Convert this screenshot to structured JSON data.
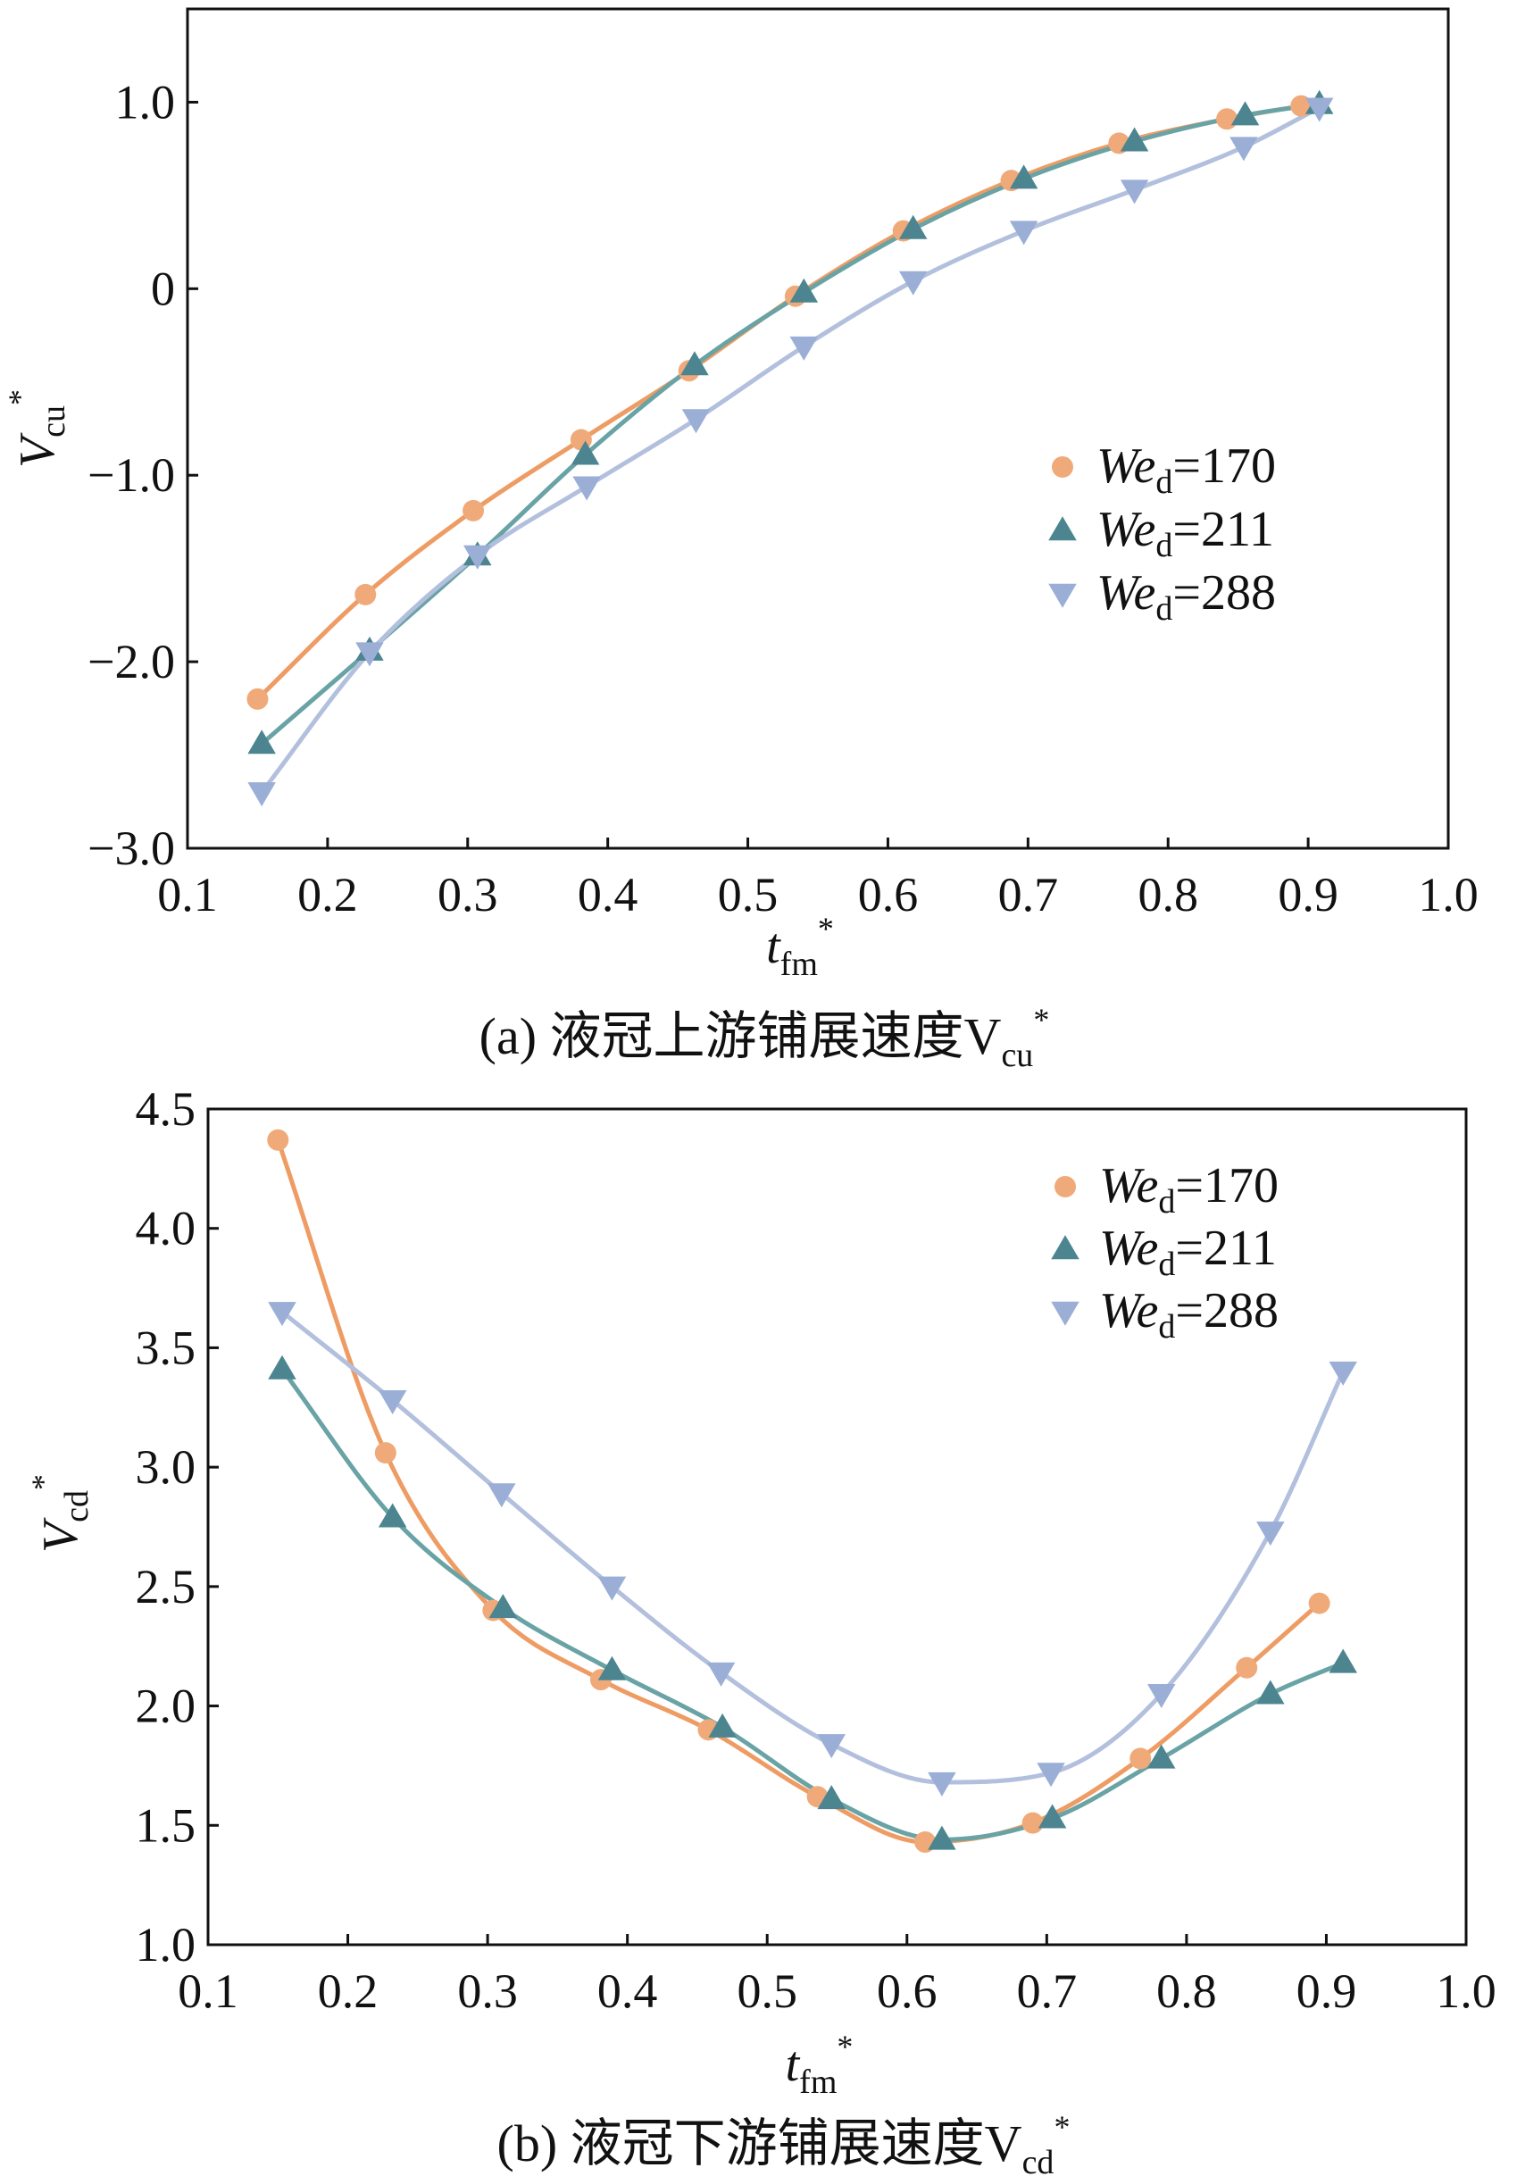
{
  "series_colors": {
    "We170": "#f0aa7a",
    "We211": "#4c8590",
    "We288": "#9aaed6"
  },
  "line_colors": {
    "We170": "#ee9c64",
    "We211": "#6aa3a5",
    "We288": "#b3c0dd"
  },
  "chart_data": [
    {
      "type": "line",
      "panel": "a",
      "caption": "(a)  液冠上游铺展速度V",
      "caption_sub": "cu",
      "caption_sup": "*",
      "xlabel": "t",
      "xlabel_sub": "fm",
      "xlabel_sup": "*",
      "ylabel": "V",
      "ylabel_sub": "cu",
      "ylabel_sup": "*",
      "xlim": [
        0.1,
        1.0
      ],
      "ylim": [
        -3.0,
        1.5
      ],
      "xticks": [
        0.1,
        0.2,
        0.3,
        0.4,
        0.5,
        0.6,
        0.7,
        0.8,
        0.9,
        1.0
      ],
      "xtick_labels": [
        "0.1",
        "0.2",
        "0.3",
        "0.4",
        "0.5",
        "0.6",
        "0.7",
        "0.8",
        "0.9",
        "1.0"
      ],
      "yticks": [
        -3.0,
        -2.0,
        -1.0,
        0,
        1.0
      ],
      "ytick_labels": [
        "−3.0",
        "−2.0",
        "−1.0",
        "0",
        "1.0"
      ],
      "legend_position": "center-right",
      "series": [
        {
          "name_main": "We",
          "name_sub": "d",
          "name_rest": "=170",
          "marker": "circle",
          "key": "We170",
          "x": [
            0.15,
            0.227,
            0.304,
            0.381,
            0.458,
            0.534,
            0.611,
            0.688,
            0.765,
            0.842,
            0.895
          ],
          "y": [
            -2.2,
            -1.64,
            -1.19,
            -0.81,
            -0.44,
            -0.04,
            0.31,
            0.58,
            0.78,
            0.91,
            0.98
          ]
        },
        {
          "name_main": "We",
          "name_sub": "d",
          "name_rest": "=211",
          "marker": "triangle-up",
          "key": "We211",
          "x": [
            0.153,
            0.23,
            0.307,
            0.384,
            0.462,
            0.54,
            0.618,
            0.697,
            0.776,
            0.855,
            0.908
          ],
          "y": [
            -2.44,
            -1.94,
            -1.43,
            -0.89,
            -0.41,
            -0.02,
            0.32,
            0.59,
            0.79,
            0.93,
            0.99
          ]
        },
        {
          "name_main": "We",
          "name_sub": "d",
          "name_rest": "=288",
          "marker": "triangle-down",
          "key": "We288",
          "x": [
            0.153,
            0.23,
            0.307,
            0.385,
            0.463,
            0.54,
            0.618,
            0.697,
            0.776,
            0.854,
            0.908
          ],
          "y": [
            -2.7,
            -1.95,
            -1.43,
            -1.06,
            -0.7,
            -0.31,
            0.04,
            0.31,
            0.53,
            0.76,
            0.97
          ]
        }
      ]
    },
    {
      "type": "line",
      "panel": "b",
      "caption": "(b) 液冠下游铺展速度V",
      "caption_sub": "cd",
      "caption_sup": "*",
      "xlabel": "t",
      "xlabel_sub": "fm",
      "xlabel_sup": "*",
      "ylabel": "V",
      "ylabel_sub": "cd",
      "ylabel_sup": "*",
      "xlim": [
        0.1,
        1.0
      ],
      "ylim": [
        1.0,
        4.5
      ],
      "xticks": [
        0.1,
        0.2,
        0.3,
        0.4,
        0.5,
        0.6,
        0.7,
        0.8,
        0.9,
        1.0
      ],
      "xtick_labels": [
        "0.1",
        "0.2",
        "0.3",
        "0.4",
        "0.5",
        "0.6",
        "0.7",
        "0.8",
        "0.9",
        "1.0"
      ],
      "yticks": [
        1.0,
        1.5,
        2.0,
        2.5,
        3.0,
        3.5,
        4.0,
        4.5
      ],
      "ytick_labels": [
        "1.0",
        "1.5",
        "2.0",
        "2.5",
        "3.0",
        "3.5",
        "4.0",
        "4.5"
      ],
      "legend_position": "top-right",
      "series": [
        {
          "name_main": "We",
          "name_sub": "d",
          "name_rest": "=170",
          "marker": "circle",
          "key": "We170",
          "x": [
            0.15,
            0.227,
            0.304,
            0.381,
            0.458,
            0.536,
            0.613,
            0.69,
            0.767,
            0.843,
            0.895
          ],
          "y": [
            4.37,
            3.06,
            2.4,
            2.11,
            1.9,
            1.62,
            1.43,
            1.51,
            1.78,
            2.16,
            2.43
          ]
        },
        {
          "name_main": "We",
          "name_sub": "d",
          "name_rest": "=211",
          "marker": "triangle-up",
          "key": "We211",
          "x": [
            0.153,
            0.232,
            0.311,
            0.389,
            0.468,
            0.546,
            0.625,
            0.704,
            0.782,
            0.86,
            0.912
          ],
          "y": [
            3.41,
            2.79,
            2.41,
            2.15,
            1.91,
            1.61,
            1.44,
            1.53,
            1.78,
            2.05,
            2.18
          ]
        },
        {
          "name_main": "We",
          "name_sub": "d",
          "name_rest": "=288",
          "marker": "triangle-down",
          "key": "We288",
          "x": [
            0.153,
            0.232,
            0.31,
            0.389,
            0.467,
            0.546,
            0.625,
            0.703,
            0.782,
            0.86,
            0.912
          ],
          "y": [
            3.65,
            3.28,
            2.89,
            2.5,
            2.14,
            1.84,
            1.68,
            1.72,
            2.05,
            2.73,
            3.4
          ]
        }
      ]
    }
  ]
}
